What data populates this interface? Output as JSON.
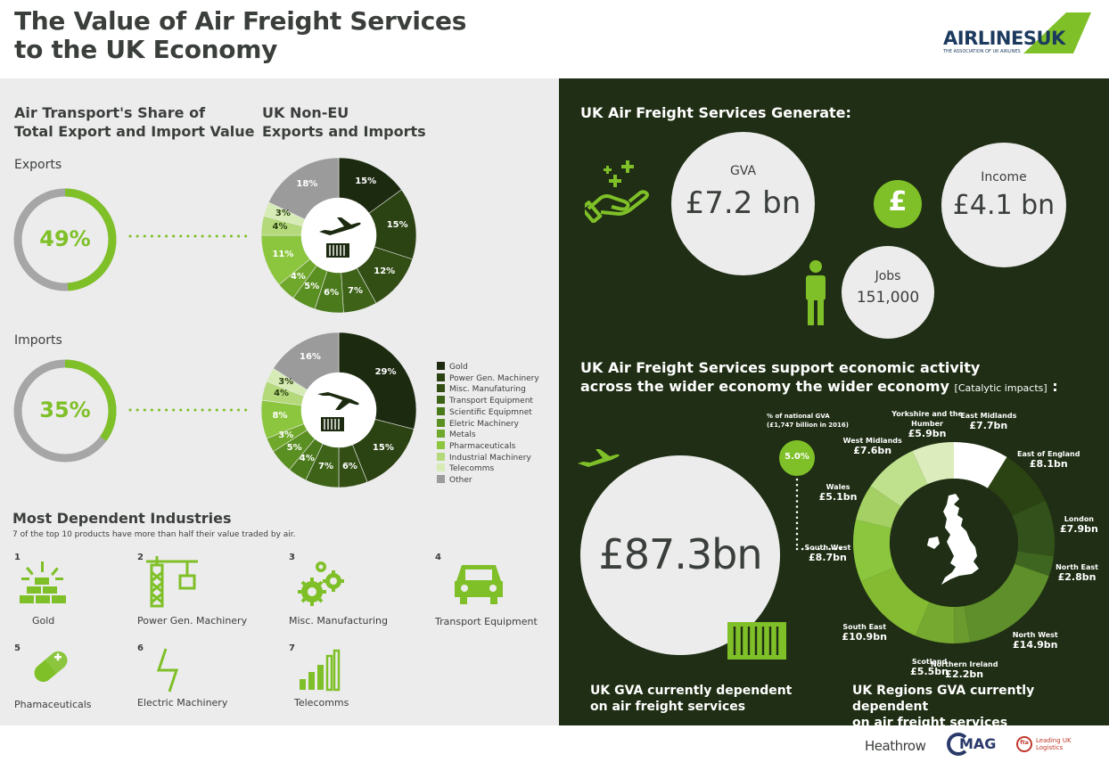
{
  "header": {
    "title_line1": "The Value of Air Freight Services",
    "title_line2": "to the UK Economy",
    "logo": {
      "text_main": "AIRLINES",
      "text_box": "UK",
      "tagline": "THE ASSOCIATION OF UK AIRLINES"
    }
  },
  "left": {
    "share_title_1": "Air Transport's Share of",
    "share_title_2": "Total Export and Import Value",
    "noneu_title_1": "UK Non-EU",
    "noneu_title_2": "Exports and Imports",
    "exports_label": "Exports",
    "imports_label": "Imports",
    "exports_share": "49%",
    "imports_share": "35%",
    "exports_share_value": 49,
    "imports_share_value": 35
  },
  "chart_data": {
    "type": "pie",
    "categories": [
      "Gold",
      "Power Gen. Machinery",
      "Misc. Manufaturing",
      "Transport Equipment",
      "Scientific Equipmnet",
      "Eletric Machinery",
      "Metals",
      "Pharmaceuticals",
      "Industrial Machinery",
      "Telecomms",
      "Other"
    ],
    "colors": [
      "#1c2a10",
      "#2b4212",
      "#324e14",
      "#3d6218",
      "#4a7a1c",
      "#5a8f22",
      "#6fa82a",
      "#8cc63f",
      "#b3d97a",
      "#d6ebb5",
      "#9b9b9b"
    ],
    "series": [
      {
        "name": "Exports",
        "values": [
          15,
          15,
          12,
          7,
          6,
          5,
          4,
          11,
          4,
          3,
          18
        ],
        "labels": [
          "15%",
          "15%",
          "12%",
          "7%",
          "6%",
          "5%",
          "4%",
          "11%",
          "4%",
          "3%",
          "18%"
        ]
      },
      {
        "name": "Imports",
        "values": [
          29,
          15,
          6,
          7,
          4,
          5,
          3,
          8,
          4,
          3,
          16
        ],
        "labels": [
          "29%",
          "15%",
          "6%",
          "7%",
          "4%",
          "5%",
          "3%",
          "8%",
          "4%",
          "3%",
          "16%"
        ]
      }
    ]
  },
  "industries": {
    "title": "Most Dependent Industries",
    "subtitle": "7 of the top 10 products have more than half their value traded by air.",
    "items": [
      {
        "num": "1",
        "label": "Gold",
        "icon": "gold-bars-icon"
      },
      {
        "num": "2",
        "label": "Power Gen. Machinery",
        "icon": "crane-icon"
      },
      {
        "num": "3",
        "label": "Misc. Manufacturing",
        "icon": "gears-icon"
      },
      {
        "num": "4",
        "label": "Transport Equipment",
        "icon": "car-icon"
      },
      {
        "num": "5",
        "label": "Phamaceuticals",
        "icon": "pill-icon"
      },
      {
        "num": "6",
        "label": "Electric Machinery",
        "icon": "lightning-icon"
      },
      {
        "num": "7",
        "label": "Telecomms",
        "icon": "signal-bars-icon"
      }
    ]
  },
  "right": {
    "generate_title": "UK Air Freight Services Generate:",
    "gva_label": "GVA",
    "gva_value": "£7.2 bn",
    "income_label": "Income",
    "income_value": "£4.1 bn",
    "jobs_label": "Jobs",
    "jobs_value": "151,000",
    "pound_symbol": "£",
    "support_title_1": "UK Air Freight Services support economic activity",
    "support_title_2": "across the wider economy the wider economy",
    "support_title_3": "[Catalytic impacts]",
    "support_title_4": ":",
    "big_value": "£87.3bn",
    "gva_note_1": "% of national GVA",
    "gva_note_2": "(£1,747 billion in 2016)",
    "gva_pct": "5.0%",
    "caption_left_1": "UK GVA currently dependent",
    "caption_left_2": "on air freight services",
    "caption_right_1": "UK Regions GVA currently dependent",
    "caption_right_2": "on air freight services"
  },
  "regions_chart": {
    "type": "donut",
    "segments": [
      {
        "name": "East Midlands",
        "value": 7.7,
        "label": "£7.7bn",
        "color": "#ffffff"
      },
      {
        "name": "East of England",
        "value": 8.1,
        "label": "£8.1bn",
        "color": "#2b4212"
      },
      {
        "name": "London",
        "value": 7.9,
        "label": "£7.9bn",
        "color": "#33511a"
      },
      {
        "name": "North East",
        "value": 2.8,
        "label": "£2.8bn",
        "color": "#3f6620"
      },
      {
        "name": "North West",
        "value": 14.9,
        "label": "£14.9bn",
        "color": "#5f8f2a"
      },
      {
        "name": "Northern Ireland",
        "value": 2.2,
        "label": "£2.2bn",
        "color": "#6b9a2e"
      },
      {
        "name": "Scotland",
        "value": 5.5,
        "label": "£5.5bn",
        "color": "#76a92f"
      },
      {
        "name": "South East",
        "value": 10.9,
        "label": "£10.9bn",
        "color": "#84bb32"
      },
      {
        "name": "South West",
        "value": 8.7,
        "label": "£8.7bn",
        "color": "#8cc63f"
      },
      {
        "name": "Wales",
        "value": 5.1,
        "label": "£5.1bn",
        "color": "#a5d063"
      },
      {
        "name": "West Midlands",
        "value": 7.6,
        "label": "£7.6bn",
        "color": "#bfe08c"
      },
      {
        "name": "Yorkshire and the Humber",
        "value": 5.9,
        "label": "£5.9bn",
        "color": "#dcecbd"
      }
    ]
  },
  "footer": {
    "heathrow": "Heathrow",
    "mag": "MAG",
    "fta_1": "Leading UK",
    "fta_2": "Logistics",
    "fta_mark": "fta"
  }
}
